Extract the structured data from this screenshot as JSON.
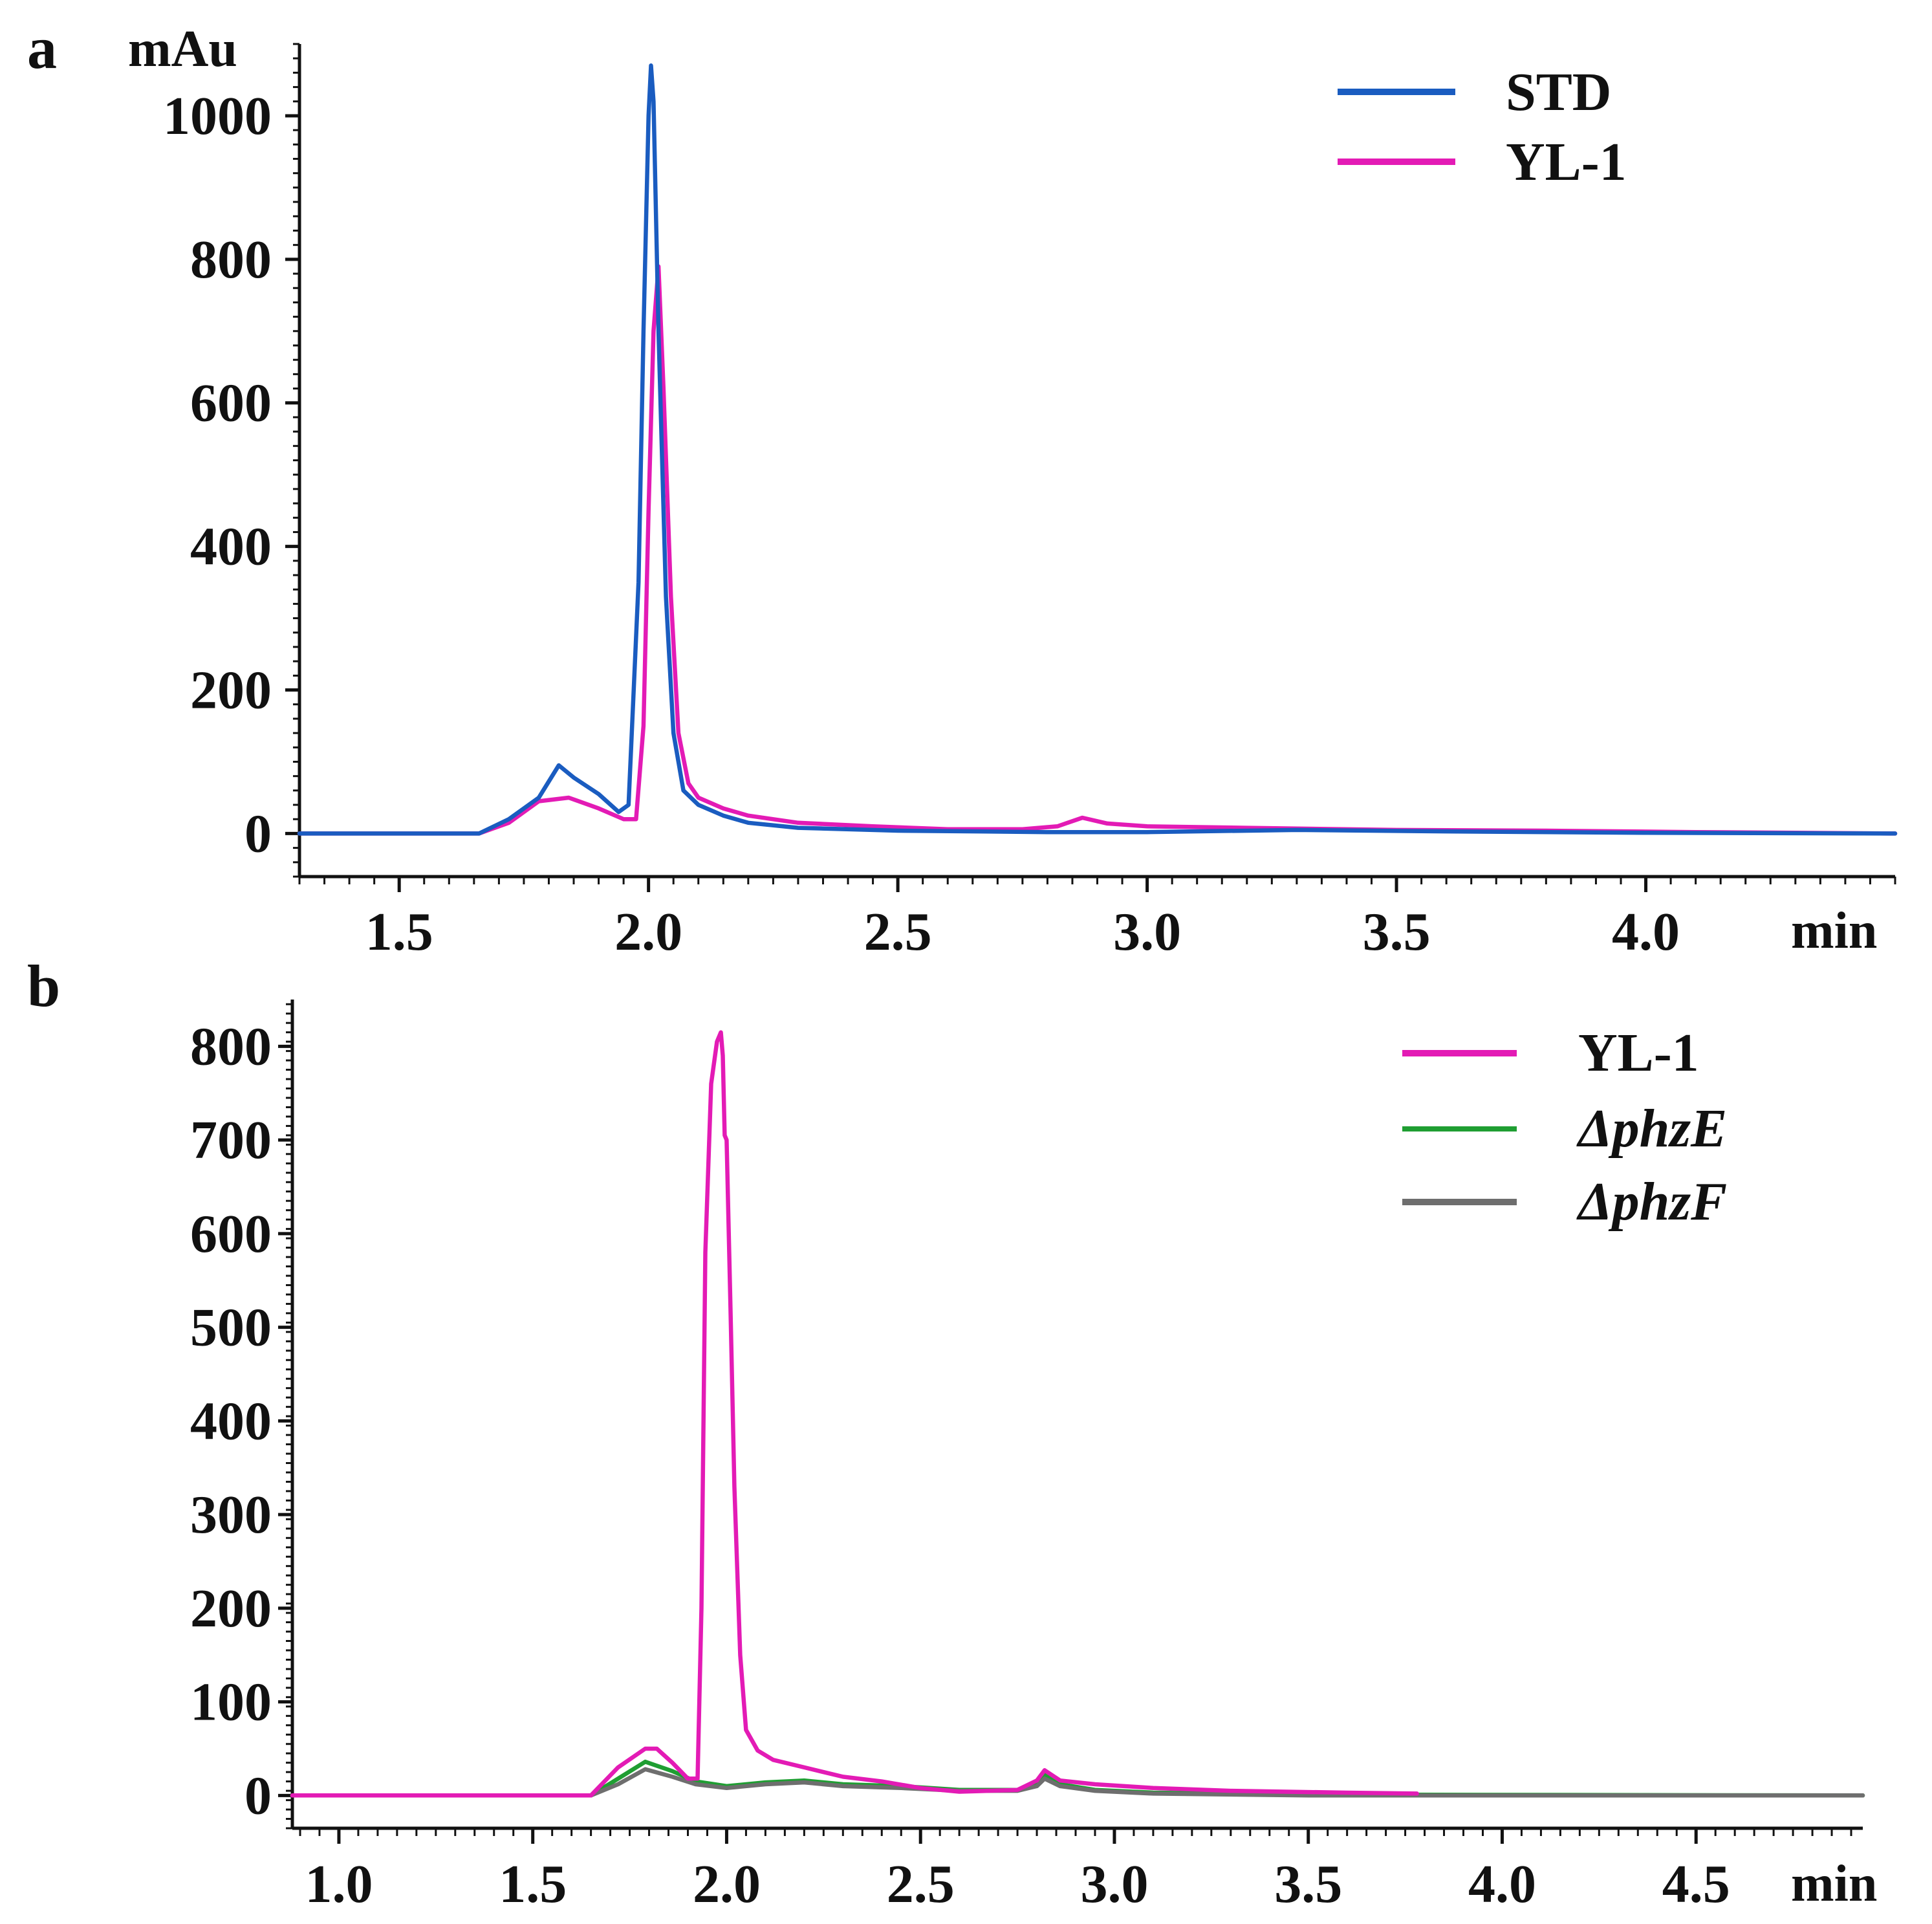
{
  "chart_data": [
    {
      "panel": "a",
      "type": "line",
      "title": "",
      "xlabel": "min",
      "ylabel": "mAu",
      "xlim": [
        1.3,
        4.5
      ],
      "ylim": [
        -60,
        1100
      ],
      "x_ticks": [
        1.5,
        2.0,
        2.5,
        3.0,
        3.5,
        4.0
      ],
      "x_tick_labels": [
        "1.5",
        "2.0",
        "2.5",
        "3.0",
        "3.5",
        "4.0"
      ],
      "y_ticks": [
        0,
        200,
        400,
        600,
        800,
        1000
      ],
      "y_tick_labels": [
        "0",
        "200",
        "400",
        "600",
        "800",
        "1000"
      ],
      "legend_position": "top-right",
      "grid": false,
      "series": [
        {
          "name": "YL-1",
          "color": "#e31bb5",
          "x": [
            1.3,
            1.66,
            1.72,
            1.78,
            1.84,
            1.9,
            1.95,
            1.975,
            1.99,
            2.0,
            2.01,
            2.02,
            2.03,
            2.045,
            2.06,
            2.08,
            2.1,
            2.15,
            2.2,
            2.3,
            2.45,
            2.6,
            2.75,
            2.82,
            2.87,
            2.92,
            3.0,
            3.2,
            3.5,
            3.8,
            4.1,
            4.5
          ],
          "values": [
            0,
            0,
            15,
            45,
            50,
            35,
            20,
            20,
            150,
            450,
            700,
            790,
            620,
            330,
            140,
            70,
            50,
            35,
            25,
            15,
            10,
            6,
            6,
            10,
            22,
            14,
            10,
            8,
            5,
            4,
            2,
            0
          ]
        },
        {
          "name": "STD",
          "color": "#1a5cc0",
          "x": [
            1.3,
            1.66,
            1.72,
            1.78,
            1.82,
            1.85,
            1.9,
            1.94,
            1.96,
            1.98,
            1.99,
            2.0,
            2.005,
            2.01,
            2.02,
            2.035,
            2.05,
            2.07,
            2.1,
            2.15,
            2.2,
            2.3,
            2.5,
            2.8,
            3.0,
            3.3,
            3.6,
            4.0,
            4.5
          ],
          "values": [
            0,
            0,
            20,
            50,
            95,
            78,
            55,
            30,
            40,
            350,
            700,
            1000,
            1070,
            1020,
            700,
            330,
            140,
            60,
            40,
            25,
            15,
            8,
            4,
            2,
            2,
            5,
            3,
            1,
            0
          ]
        }
      ]
    },
    {
      "panel": "b",
      "type": "line",
      "title": "",
      "xlabel": "min",
      "ylabel": "",
      "xlim": [
        0.88,
        4.93
      ],
      "ylim": [
        -35,
        850
      ],
      "x_ticks": [
        1.0,
        1.5,
        2.0,
        2.5,
        3.0,
        3.5,
        4.0,
        4.5
      ],
      "x_tick_labels": [
        "1.0",
        "1.5",
        "2.0",
        "2.5",
        "3.0",
        "3.5",
        "4.0",
        "4.5"
      ],
      "y_ticks": [
        0,
        100,
        200,
        300,
        400,
        500,
        600,
        700,
        800
      ],
      "y_tick_labels": [
        "0",
        "100",
        "200",
        "300",
        "400",
        "500",
        "600",
        "700",
        "800"
      ],
      "legend_position": "top-right",
      "grid": false,
      "series": [
        {
          "name": "ΔphzE",
          "color": "#1f9e32",
          "x": [
            0.88,
            1.65,
            1.72,
            1.79,
            1.86,
            1.92,
            2.0,
            2.1,
            2.2,
            2.3,
            2.45,
            2.6,
            2.75,
            2.8,
            2.82,
            2.86,
            2.95,
            3.1,
            3.5,
            4.93
          ],
          "values": [
            0,
            0,
            18,
            36,
            26,
            15,
            10,
            14,
            16,
            12,
            10,
            6,
            6,
            12,
            22,
            12,
            6,
            3,
            1,
            0
          ]
        },
        {
          "name": "ΔphzF",
          "color": "#6e6e6e",
          "x": [
            0.88,
            1.65,
            1.72,
            1.79,
            1.86,
            1.92,
            2.0,
            2.1,
            2.2,
            2.3,
            2.45,
            2.6,
            2.75,
            2.8,
            2.82,
            2.86,
            2.95,
            3.1,
            3.5,
            4.93
          ],
          "values": [
            0,
            0,
            12,
            28,
            20,
            12,
            8,
            12,
            14,
            10,
            8,
            5,
            5,
            10,
            18,
            10,
            5,
            2,
            0,
            0
          ]
        },
        {
          "name": "YL-1",
          "color": "#e31bb5",
          "x": [
            0.88,
            1.65,
            1.72,
            1.79,
            1.82,
            1.86,
            1.9,
            1.925,
            1.935,
            1.945,
            1.96,
            1.975,
            1.985,
            1.99,
            1.995,
            2.0,
            2.01,
            2.02,
            2.035,
            2.05,
            2.08,
            2.12,
            2.2,
            2.3,
            2.4,
            2.5,
            2.6,
            2.75,
            2.8,
            2.82,
            2.86,
            2.95,
            3.1,
            3.3,
            3.6,
            3.78
          ],
          "values": [
            0,
            0,
            30,
            50,
            50,
            35,
            18,
            18,
            200,
            580,
            760,
            805,
            815,
            790,
            705,
            700,
            520,
            330,
            150,
            70,
            48,
            38,
            30,
            20,
            15,
            8,
            4,
            6,
            16,
            27,
            16,
            12,
            8,
            5,
            3,
            2
          ]
        }
      ]
    }
  ],
  "panel_labels": {
    "a": "a",
    "b": "b"
  },
  "legends": {
    "a": [
      {
        "label": "STD",
        "color": "#1a5cc0"
      },
      {
        "label": "YL-1",
        "color": "#e31bb5"
      }
    ],
    "b": [
      {
        "label": "YL-1",
        "color": "#e31bb5"
      },
      {
        "label": "ΔphzE",
        "color": "#1f9e32"
      },
      {
        "label": "ΔphzF",
        "color": "#6e6e6e"
      }
    ]
  }
}
